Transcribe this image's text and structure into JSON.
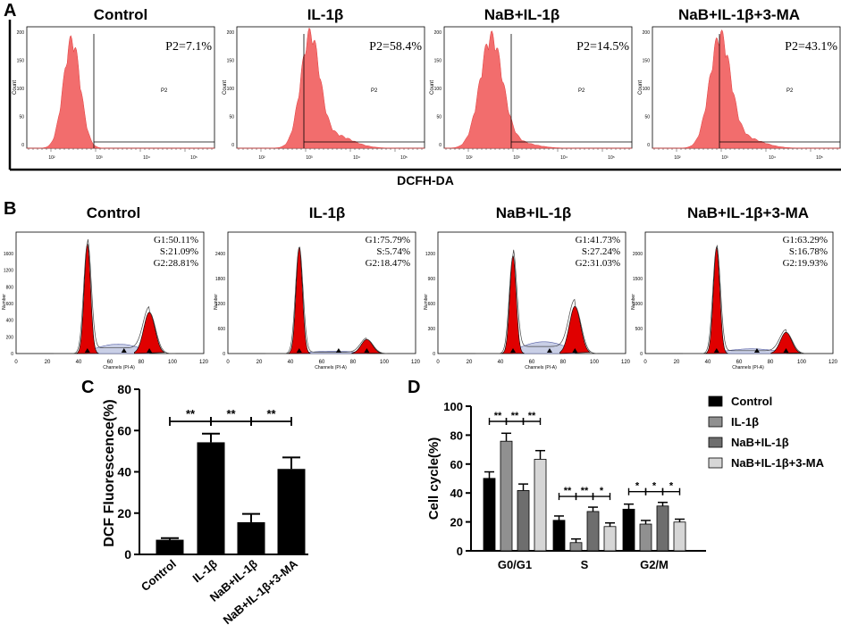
{
  "panels": {
    "a": {
      "label": "A",
      "xlabel": "DCFH-DA",
      "ylabel": "Count",
      "gate_label": "P2",
      "yticks": [
        "200",
        "150",
        "100",
        "50",
        "0"
      ],
      "xticks": [
        "10²",
        "10³",
        "10⁴",
        "10⁵"
      ],
      "histograms": [
        {
          "title": "Control",
          "p2": "P2=7.1%"
        },
        {
          "title": "IL-1β",
          "p2": "P2=58.4%"
        },
        {
          "title": "NaB+IL-1β",
          "p2": "P2=14.5%"
        },
        {
          "title": "NaB+IL-1β+3-MA",
          "p2": "P2=43.1%"
        }
      ]
    },
    "b": {
      "label": "B",
      "xlabel": "Channels (PI-A)",
      "ylabel": "Number",
      "xticks": [
        "0",
        "20",
        "40",
        "60",
        "80",
        "100",
        "120"
      ],
      "histograms": [
        {
          "title": "Control",
          "g1": "G1:50.11%",
          "s": "S:21.09%",
          "g2": "G2:28.81%",
          "yticks": [
            "1600",
            "1200",
            "800",
            "600",
            "400",
            "200",
            "0"
          ]
        },
        {
          "title": "IL-1β",
          "g1": "G1:75.79%",
          "s": "S:5.74%",
          "g2": "G2:18.47%",
          "yticks": [
            "2400",
            "1800",
            "1200",
            "600",
            "0"
          ]
        },
        {
          "title": "NaB+IL-1β",
          "g1": "G1:41.73%",
          "s": "S:27.24%",
          "g2": "G2:31.03%",
          "yticks": [
            "1200",
            "900",
            "600",
            "300",
            "0"
          ]
        },
        {
          "title": "NaB+IL-1β+3-MA",
          "g1": "G1:63.29%",
          "s": "S:16.78%",
          "g2": "G2:19.93%",
          "yticks": [
            "2000",
            "1500",
            "1000",
            "500",
            "0"
          ]
        }
      ]
    },
    "c": {
      "label": "C"
    },
    "d": {
      "label": "D"
    }
  },
  "chart_data": [
    {
      "type": "bar",
      "id": "C",
      "ylabel": "DCF Fluorescence(%)",
      "categories": [
        "Control",
        "IL-1β",
        "NaB+IL-1β",
        "NaB+IL-1β+3-MA"
      ],
      "values": [
        7.1,
        54.3,
        15.6,
        41.4
      ],
      "errors": [
        0.8,
        4.2,
        4.0,
        5.6
      ],
      "ylim": [
        0,
        80
      ],
      "yticks": [
        0,
        20,
        40,
        60,
        80
      ],
      "significance": [
        {
          "from": 0,
          "to": 1,
          "label": "**"
        },
        {
          "from": 1,
          "to": 2,
          "label": "**"
        },
        {
          "from": 2,
          "to": 3,
          "label": "**"
        }
      ],
      "colors": {
        "bar": "#000000"
      }
    },
    {
      "type": "bar",
      "id": "D",
      "ylabel": "Cell cycle(%)",
      "categories": [
        "G0/G1",
        "S",
        "G2/M"
      ],
      "series": [
        {
          "name": "Control",
          "values": [
            50.1,
            21.1,
            28.8
          ],
          "errors": [
            4.5,
            3.0,
            3.5
          ],
          "color": "#000000"
        },
        {
          "name": "IL-1β",
          "values": [
            75.8,
            5.7,
            18.5
          ],
          "errors": [
            5.5,
            2.5,
            2.5
          ],
          "color": "#909090"
        },
        {
          "name": "NaB+IL-1β",
          "values": [
            41.7,
            27.2,
            31.0
          ],
          "errors": [
            4.5,
            3.0,
            2.5
          ],
          "color": "#6e6e6e"
        },
        {
          "name": "NaB+IL-1β+3-MA",
          "values": [
            63.3,
            16.8,
            19.9
          ],
          "errors": [
            6.0,
            2.5,
            2.0
          ],
          "color": "#d6d6d6"
        }
      ],
      "ylim": [
        0,
        100
      ],
      "yticks": [
        0,
        20,
        40,
        60,
        80,
        100
      ],
      "significance": [
        {
          "category": 0,
          "labels": [
            "**",
            "**",
            "**"
          ]
        },
        {
          "category": 1,
          "labels": [
            "**",
            "**",
            "*"
          ]
        },
        {
          "category": 2,
          "labels": [
            "*",
            "*",
            "*"
          ]
        }
      ],
      "legend": "top-right"
    }
  ]
}
